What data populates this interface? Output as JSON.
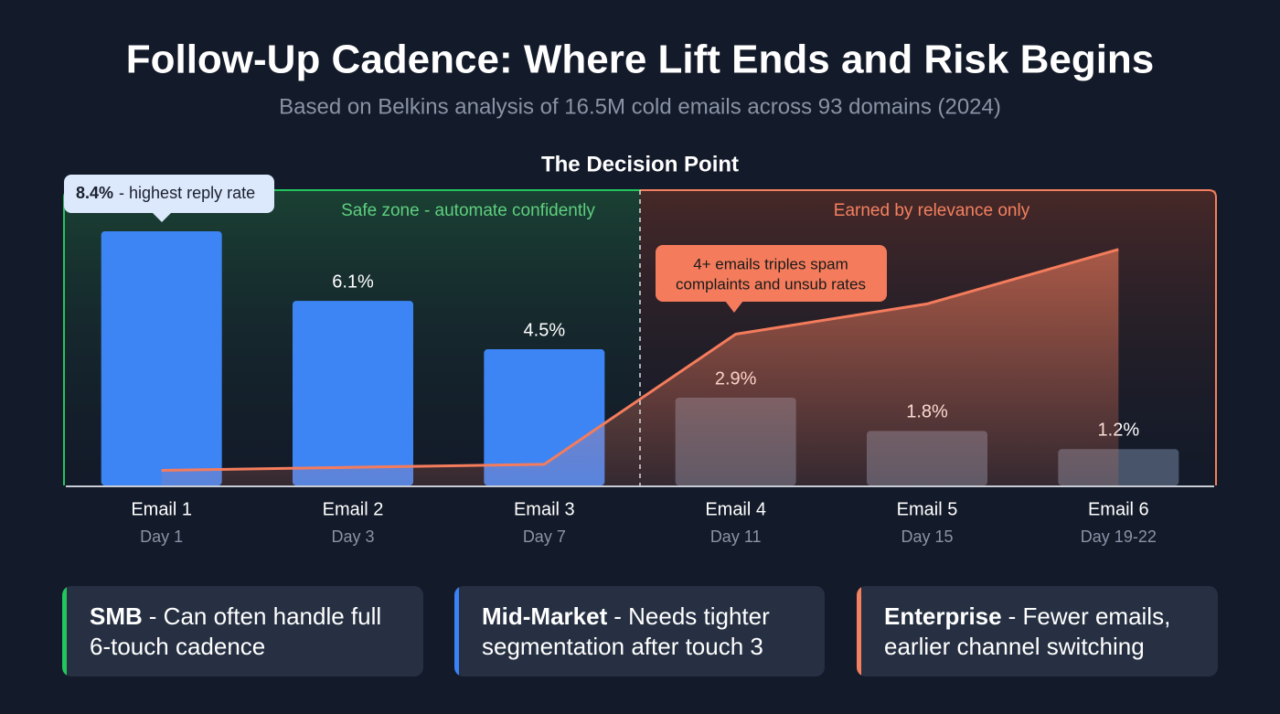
{
  "title": "Follow-Up Cadence: Where Lift Ends and Risk Begins",
  "subtitle": "Based on Belkins analysis of 16.5M cold emails across 93 domains (2024)",
  "chart_data": {
    "type": "bar",
    "title": "The Decision Point",
    "categories": [
      "Email 1",
      "Email 2",
      "Email 3",
      "Email 4",
      "Email 5",
      "Email 6"
    ],
    "days": [
      "Day 1",
      "Day 3",
      "Day 7",
      "Day 11",
      "Day 15",
      "Day 19-22"
    ],
    "values": [
      8.4,
      6.1,
      4.5,
      2.9,
      1.8,
      1.2
    ],
    "value_labels": [
      "8.4%",
      "6.1%",
      "4.5%",
      "2.9%",
      "1.8%",
      "1.2%"
    ],
    "colors": [
      "#3d85f4",
      "#3d85f4",
      "#3d85f4",
      "#475469",
      "#475469",
      "#475469"
    ],
    "risk_line": {
      "values": [
        0.5,
        0.6,
        0.7,
        5.0,
        6.0,
        7.8
      ],
      "color": "#f47c5c"
    },
    "zones": [
      {
        "label": "Safe zone - automate confidently",
        "color": "#5ecf7e"
      },
      {
        "label": "Earned by relevance only",
        "color": "#f4805f"
      }
    ],
    "annotations": [
      {
        "text": "- highest reply rate"
      },
      {
        "lines": [
          "4+ emails triples spam",
          "complaints and unsub rates"
        ]
      }
    ]
  },
  "segments": [
    {
      "label": "SMB",
      "text": "- Can often handle full 6-touch cadence",
      "color": "#22c55e"
    },
    {
      "label": "Mid-Market",
      "text": "- Needs tighter segmentation after touch 3",
      "color": "#3b82f6"
    },
    {
      "label": "Enterprise",
      "text": "- Fewer emails, earlier channel switching",
      "color": "#f4805f"
    }
  ]
}
